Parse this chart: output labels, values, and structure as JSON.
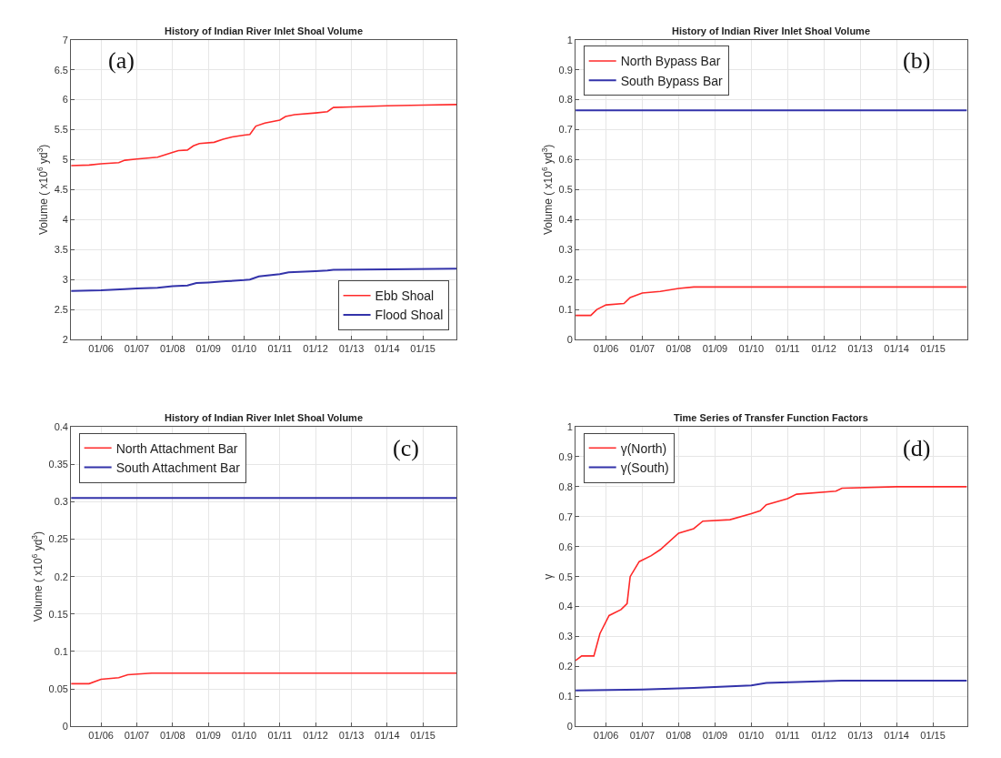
{
  "chart_data": [
    {
      "type": "line",
      "title": "History of Indian River Inlet Shoal Volume",
      "ylabel": "Volume ( x10$^{6}$ yd$^{3}$)",
      "annotations": [
        "(a)"
      ],
      "legend": "bottom right",
      "grid": true,
      "xlim": [
        "2005-03-01",
        "2015-12-10"
      ],
      "xticks": [
        {
          "value": "2006-01-01",
          "label": "01/06"
        },
        {
          "value": "2007-01-01",
          "label": "01/07"
        },
        {
          "value": "2008-01-01",
          "label": "01/08"
        },
        {
          "value": "2009-01-01",
          "label": "01/09"
        },
        {
          "value": "2010-01-01",
          "label": "01/10"
        },
        {
          "value": "2011-01-01",
          "label": "01/11"
        },
        {
          "value": "2012-01-01",
          "label": "01/12"
        },
        {
          "value": "2013-01-01",
          "label": "01/13"
        },
        {
          "value": "2014-01-01",
          "label": "01/14"
        },
        {
          "value": "2015-01-01",
          "label": "01/15"
        }
      ],
      "ylim": [
        2,
        7
      ],
      "yticks": [
        2,
        2.5,
        3,
        3.5,
        4,
        4.5,
        5,
        5.5,
        6,
        6.5,
        7
      ],
      "series": [
        {
          "name": "Ebb Shoal",
          "color": "#ff2a2a",
          "x": [
            "2005-03-01",
            "2005-09-01",
            "2006-01-01",
            "2006-07-01",
            "2006-09-01",
            "2007-01-01",
            "2007-08-01",
            "2008-01-01",
            "2008-03-01",
            "2008-06-01",
            "2008-08-01",
            "2008-10-01",
            "2009-03-01",
            "2009-06-01",
            "2009-09-01",
            "2010-01-01",
            "2010-03-01",
            "2010-05-01",
            "2010-08-01",
            "2011-01-01",
            "2011-03-01",
            "2011-06-01",
            "2012-01-01",
            "2012-05-01",
            "2012-07-01",
            "2013-01-01",
            "2014-01-01",
            "2015-01-01",
            "2015-12-10"
          ],
          "values": [
            4.9,
            4.91,
            4.93,
            4.95,
            4.99,
            5.01,
            5.04,
            5.12,
            5.15,
            5.16,
            5.23,
            5.27,
            5.29,
            5.34,
            5.38,
            5.41,
            5.42,
            5.56,
            5.61,
            5.66,
            5.72,
            5.75,
            5.78,
            5.8,
            5.87,
            5.88,
            5.9,
            5.91,
            5.92
          ]
        },
        {
          "name": "Flood Shoal",
          "color": "#3333aa",
          "x": [
            "2005-03-01",
            "2006-01-01",
            "2006-09-01",
            "2007-01-01",
            "2007-08-01",
            "2008-01-01",
            "2008-06-01",
            "2008-09-01",
            "2009-01-01",
            "2009-07-01",
            "2010-01-01",
            "2010-03-01",
            "2010-06-01",
            "2011-01-01",
            "2011-04-01",
            "2012-01-01",
            "2012-05-01",
            "2012-07-01",
            "2014-01-01",
            "2015-12-10"
          ],
          "values": [
            2.81,
            2.82,
            2.84,
            2.85,
            2.86,
            2.89,
            2.9,
            2.94,
            2.95,
            2.97,
            2.99,
            3.0,
            3.05,
            3.09,
            3.12,
            3.14,
            3.15,
            3.16,
            3.17,
            3.18
          ]
        }
      ]
    },
    {
      "type": "line",
      "title": "History of Indian River Inlet Shoal Volume",
      "ylabel": "Volume ( x10$^{6}$ yd$^{3}$)",
      "annotations": [
        "(b)"
      ],
      "legend": "top left",
      "grid": true,
      "xlim": [
        "2005-03-01",
        "2015-12-10"
      ],
      "xticks": [
        {
          "value": "2006-01-01",
          "label": "01/06"
        },
        {
          "value": "2007-01-01",
          "label": "01/07"
        },
        {
          "value": "2008-01-01",
          "label": "01/08"
        },
        {
          "value": "2009-01-01",
          "label": "01/09"
        },
        {
          "value": "2010-01-01",
          "label": "01/10"
        },
        {
          "value": "2011-01-01",
          "label": "01/11"
        },
        {
          "value": "2012-01-01",
          "label": "01/12"
        },
        {
          "value": "2013-01-01",
          "label": "01/13"
        },
        {
          "value": "2014-01-01",
          "label": "01/14"
        },
        {
          "value": "2015-01-01",
          "label": "01/15"
        }
      ],
      "ylim": [
        0,
        1
      ],
      "yticks": [
        0,
        0.1,
        0.2,
        0.3,
        0.4,
        0.5,
        0.6,
        0.7,
        0.8,
        0.9,
        1
      ],
      "series": [
        {
          "name": "North Bypass Bar",
          "color": "#ff2a2a",
          "x": [
            "2005-03-01",
            "2005-08-01",
            "2005-10-01",
            "2006-01-01",
            "2006-07-01",
            "2006-09-01",
            "2007-01-01",
            "2007-07-01",
            "2008-01-01",
            "2008-06-01",
            "2015-12-10"
          ],
          "values": [
            0.08,
            0.08,
            0.1,
            0.115,
            0.12,
            0.14,
            0.155,
            0.16,
            0.17,
            0.175,
            0.175
          ]
        },
        {
          "name": "South Bypass Bar",
          "color": "#3333aa",
          "x": [
            "2005-03-01",
            "2015-12-10"
          ],
          "values": [
            0.765,
            0.765
          ]
        }
      ]
    },
    {
      "type": "line",
      "title": "History of Indian River Inlet Shoal Volume",
      "ylabel": "Volume ( x10$^{6}$ yd$^{3}$)",
      "annotations": [
        "(c)"
      ],
      "legend": "top left",
      "grid": true,
      "xlim": [
        "2005-03-01",
        "2015-12-10"
      ],
      "xticks": [
        {
          "value": "2006-01-01",
          "label": "01/06"
        },
        {
          "value": "2007-01-01",
          "label": "01/07"
        },
        {
          "value": "2008-01-01",
          "label": "01/08"
        },
        {
          "value": "2009-01-01",
          "label": "01/09"
        },
        {
          "value": "2010-01-01",
          "label": "01/10"
        },
        {
          "value": "2011-01-01",
          "label": "01/11"
        },
        {
          "value": "2012-01-01",
          "label": "01/12"
        },
        {
          "value": "2013-01-01",
          "label": "01/13"
        },
        {
          "value": "2014-01-01",
          "label": "01/14"
        },
        {
          "value": "2015-01-01",
          "label": "01/15"
        }
      ],
      "ylim": [
        0,
        0.4
      ],
      "yticks": [
        0,
        0.05,
        0.1,
        0.15,
        0.2,
        0.25,
        0.3,
        0.35,
        0.4
      ],
      "series": [
        {
          "name": "North Attachment Bar",
          "color": "#ff2a2a",
          "x": [
            "2005-03-01",
            "2005-09-01",
            "2006-01-01",
            "2006-07-01",
            "2006-10-01",
            "2007-06-01",
            "2015-12-10"
          ],
          "values": [
            0.057,
            0.057,
            0.063,
            0.065,
            0.069,
            0.071,
            0.071
          ]
        },
        {
          "name": "South Attachment Bar",
          "color": "#3333aa",
          "x": [
            "2005-03-01",
            "2015-12-10"
          ],
          "values": [
            0.305,
            0.305
          ]
        }
      ]
    },
    {
      "type": "line",
      "title": "Time Series of Transfer Function Factors",
      "ylabel": "γ",
      "annotations": [
        "(d)"
      ],
      "legend": "top left",
      "grid": true,
      "xlim": [
        "2005-03-01",
        "2015-12-10"
      ],
      "xticks": [
        {
          "value": "2006-01-01",
          "label": "01/06"
        },
        {
          "value": "2007-01-01",
          "label": "01/07"
        },
        {
          "value": "2008-01-01",
          "label": "01/08"
        },
        {
          "value": "2009-01-01",
          "label": "01/09"
        },
        {
          "value": "2010-01-01",
          "label": "01/10"
        },
        {
          "value": "2011-01-01",
          "label": "01/11"
        },
        {
          "value": "2012-01-01",
          "label": "01/12"
        },
        {
          "value": "2013-01-01",
          "label": "01/13"
        },
        {
          "value": "2014-01-01",
          "label": "01/14"
        },
        {
          "value": "2015-01-01",
          "label": "01/15"
        }
      ],
      "ylim": [
        0,
        1
      ],
      "yticks": [
        0,
        0.1,
        0.2,
        0.3,
        0.4,
        0.5,
        0.6,
        0.7,
        0.8,
        0.9,
        1
      ],
      "series": [
        {
          "name": "γ(North)",
          "color": "#ff2a2a",
          "x": [
            "2005-03-01",
            "2005-05-01",
            "2005-09-01",
            "2005-11-01",
            "2006-02-01",
            "2006-06-01",
            "2006-08-01",
            "2006-09-01",
            "2006-12-01",
            "2007-04-01",
            "2007-07-01",
            "2008-01-01",
            "2008-06-01",
            "2008-09-01",
            "2009-06-01",
            "2010-01-01",
            "2010-04-01",
            "2010-06-01",
            "2011-01-01",
            "2011-04-01",
            "2012-05-01",
            "2012-07-01",
            "2014-01-01",
            "2015-12-10"
          ],
          "values": [
            0.22,
            0.235,
            0.235,
            0.31,
            0.37,
            0.39,
            0.41,
            0.5,
            0.55,
            0.57,
            0.59,
            0.645,
            0.66,
            0.685,
            0.69,
            0.71,
            0.72,
            0.74,
            0.76,
            0.775,
            0.785,
            0.795,
            0.8,
            0.8
          ]
        },
        {
          "name": "γ(South)",
          "color": "#3333aa",
          "x": [
            "2005-03-01",
            "2007-01-01",
            "2008-06-01",
            "2010-01-01",
            "2010-06-01",
            "2012-07-01",
            "2015-12-10"
          ],
          "values": [
            0.12,
            0.123,
            0.128,
            0.137,
            0.145,
            0.153,
            0.153
          ]
        }
      ]
    }
  ]
}
